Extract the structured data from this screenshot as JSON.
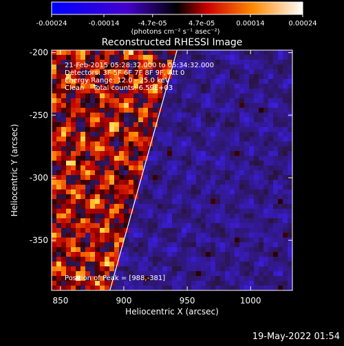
{
  "chart_data": {
    "type": "heatmap",
    "title": "Reconstructed RHESSI Image",
    "xlabel": "Heliocentric X (arcsec)",
    "ylabel": "Heliocentric Y (arcsec)",
    "xlim": [
      843,
      1033
    ],
    "ylim": [
      -390,
      -198
    ],
    "x_ticks": [
      850,
      900,
      950,
      1000
    ],
    "y_ticks": [
      -200,
      -250,
      -300,
      -350
    ],
    "colorbar": {
      "range": [
        -0.00024,
        0.00024
      ],
      "ticks": [
        -0.00024,
        -0.00014,
        -4.7e-05,
        4.7e-05,
        0.00014,
        0.00024
      ],
      "tick_labels": [
        "-0.00024",
        "-0.00014",
        "-4.7e-05",
        "4.7e-05",
        "0.00014",
        "0.00024"
      ],
      "units": "(photons cm⁻² s⁻¹ asec⁻²)",
      "colors": [
        "#0000ff",
        "#4400cc",
        "#000000",
        "#ff0000",
        "#ff8800",
        "#ffffff"
      ]
    },
    "annotations": [
      "21-Feb-2015 05:28:32.000 to 05:34:32.000",
      "Detectors: 3F 5F 6F 7F 8F 9F, Att 0",
      "Energy Range: 12.0 - 25.0 keV",
      "Clean    Total counts: 6.59E+03",
      "Position of Peak = [988,-381]"
    ],
    "limb_line": {
      "x": [
        889,
        942
      ],
      "y": [
        -390,
        -198
      ]
    },
    "grid": false
  },
  "timestamp": "19-May-2022 01:54"
}
